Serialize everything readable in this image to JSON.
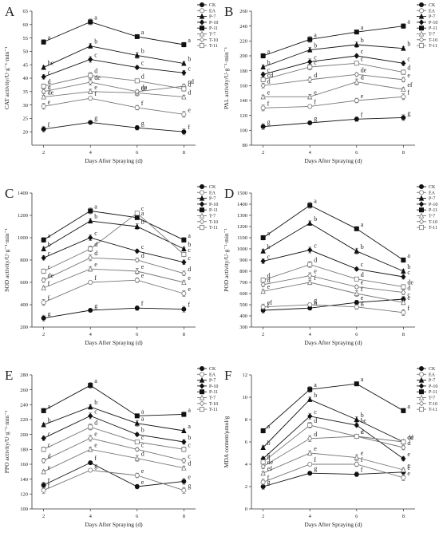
{
  "chart_data": [
    {
      "panel": "A",
      "type": "line",
      "ylabel": "CAT activity/U·g⁻¹·min⁻¹",
      "xlabel": "Days After Spraying (d)",
      "x": [
        2,
        4,
        6,
        8
      ],
      "ylim": [
        15,
        65
      ],
      "yticks": [
        20,
        25,
        30,
        35,
        40,
        45,
        50,
        55,
        60,
        65
      ],
      "series": [
        {
          "name": "CK",
          "values": [
            21,
            23.5,
            21.5,
            20
          ],
          "sig": [
            "f",
            "g",
            "g",
            "f"
          ]
        },
        {
          "name": "EA",
          "values": [
            29.5,
            32.5,
            29,
            26.5
          ],
          "sig": [
            "e",
            "f",
            "f",
            "e"
          ]
        },
        {
          "name": "P-7",
          "values": [
            44,
            52,
            48.5,
            45.5
          ],
          "sig": [
            "bc",
            "b",
            "b",
            "b"
          ]
        },
        {
          "name": "P-10",
          "values": [
            40.5,
            47,
            44,
            42
          ],
          "sig": [
            "c",
            "c",
            "c",
            "c"
          ]
        },
        {
          "name": "P-11",
          "values": [
            53.5,
            61,
            55.5,
            52.5
          ],
          "sig": [
            "a",
            "a",
            "a",
            "a"
          ]
        },
        {
          "name": "T-7",
          "values": [
            33,
            35,
            34.5,
            33
          ],
          "sig": [
            "de",
            "e",
            "de",
            "d"
          ]
        },
        {
          "name": "T-10",
          "values": [
            35,
            38.5,
            35,
            37
          ],
          "sig": [
            "d",
            "de",
            "de",
            "cd"
          ]
        },
        {
          "name": "T-11",
          "values": [
            37,
            41,
            39,
            36
          ],
          "sig": [
            "d",
            "d",
            "d",
            "d"
          ]
        }
      ]
    },
    {
      "panel": "B",
      "type": "line",
      "ylabel": "PAL activity/U·g⁻¹·min⁻¹",
      "xlabel": "Days After Spraying (d)",
      "x": [
        2,
        4,
        6,
        8
      ],
      "ylim": [
        80,
        260
      ],
      "yticks": [
        80,
        100,
        120,
        140,
        160,
        180,
        200,
        220,
        240,
        260
      ],
      "series": [
        {
          "name": "CK",
          "values": [
            105,
            110,
            115,
            117
          ],
          "sig": [
            "g",
            "g",
            "f",
            "g"
          ]
        },
        {
          "name": "EA",
          "values": [
            130,
            132,
            140,
            145
          ],
          "sig": [
            "f",
            "f",
            "e",
            "f"
          ]
        },
        {
          "name": "P-7",
          "values": [
            185,
            208,
            215,
            210
          ],
          "sig": [
            "b",
            "b",
            "b",
            "b"
          ]
        },
        {
          "name": "P-10",
          "values": [
            175,
            192,
            200,
            190
          ],
          "sig": [
            "c",
            "c",
            "c",
            "c"
          ]
        },
        {
          "name": "P-11",
          "values": [
            200,
            222,
            232,
            240
          ],
          "sig": [
            "a",
            "a",
            "a",
            "a"
          ]
        },
        {
          "name": "T-7",
          "values": [
            145,
            145,
            165,
            155
          ],
          "sig": [
            "e",
            "e",
            "d",
            "ef"
          ]
        },
        {
          "name": "T-10",
          "values": [
            160,
            168,
            175,
            168
          ],
          "sig": [
            "d",
            "d",
            "de",
            "e"
          ]
        },
        {
          "name": "T-11",
          "values": [
            168,
            185,
            190,
            178
          ],
          "sig": [
            "cd",
            "c",
            "c",
            "d"
          ]
        }
      ]
    },
    {
      "panel": "C",
      "type": "line",
      "ylabel": "SOD activity/U·g⁻¹·min⁻¹",
      "xlabel": "Days After Spraying (d)",
      "x": [
        2,
        4,
        6,
        8
      ],
      "ylim": [
        200,
        1400
      ],
      "yticks": [
        200,
        400,
        600,
        800,
        1000,
        1200,
        1400
      ],
      "series": [
        {
          "name": "CK",
          "values": [
            280,
            350,
            370,
            360
          ],
          "sig": [
            "g",
            "g",
            "f",
            "f"
          ]
        },
        {
          "name": "EA",
          "values": [
            420,
            600,
            620,
            500
          ],
          "sig": [
            "f",
            "f",
            "e",
            "e"
          ]
        },
        {
          "name": "P-7",
          "values": [
            900,
            1150,
            1100,
            900
          ],
          "sig": [
            "b",
            "b",
            "b",
            "b"
          ]
        },
        {
          "name": "P-10",
          "values": [
            820,
            1000,
            880,
            780
          ],
          "sig": [
            "c",
            "c",
            "c",
            "c"
          ]
        },
        {
          "name": "P-11",
          "values": [
            980,
            1240,
            1180,
            980
          ],
          "sig": [
            "a",
            "a",
            "a",
            "a"
          ]
        },
        {
          "name": "T-7",
          "values": [
            550,
            720,
            700,
            600
          ],
          "sig": [
            "f",
            "e",
            "e",
            "e"
          ]
        },
        {
          "name": "T-10",
          "values": [
            620,
            820,
            800,
            680
          ],
          "sig": [
            "de",
            "d",
            "d",
            "d"
          ]
        },
        {
          "name": "T-11",
          "values": [
            700,
            900,
            1220,
            850
          ],
          "sig": [
            "c",
            "d",
            "c",
            "c"
          ]
        }
      ]
    },
    {
      "panel": "D",
      "type": "line",
      "ylabel": "POD activity/U·g⁻¹·min⁻¹",
      "xlabel": "Days After Spraying (d)",
      "x": [
        2,
        4,
        6,
        8
      ],
      "ylim": [
        300,
        1500
      ],
      "yticks": [
        300,
        400,
        500,
        600,
        700,
        800,
        900,
        1000,
        1100,
        1200,
        1300,
        1400,
        1500
      ],
      "series": [
        {
          "name": "CK",
          "values": [
            450,
            470,
            520,
            550
          ],
          "sig": [
            "f",
            "h",
            "e",
            "c"
          ]
        },
        {
          "name": "EA",
          "values": [
            480,
            500,
            480,
            430
          ],
          "sig": [
            "ef",
            "g",
            "g",
            "f"
          ]
        },
        {
          "name": "P-7",
          "values": [
            980,
            1230,
            980,
            800
          ],
          "sig": [
            "b",
            "b",
            "b",
            "b"
          ]
        },
        {
          "name": "P-10",
          "values": [
            890,
            990,
            820,
            750
          ],
          "sig": [
            "c",
            "c",
            "c",
            "c"
          ]
        },
        {
          "name": "P-11",
          "values": [
            1100,
            1390,
            1180,
            900
          ],
          "sig": [
            "a",
            "a",
            "a",
            "a"
          ]
        },
        {
          "name": "T-7",
          "values": [
            620,
            700,
            600,
            520
          ],
          "sig": [
            "e",
            "f",
            "f",
            "e"
          ]
        },
        {
          "name": "T-10",
          "values": [
            680,
            760,
            660,
            610
          ],
          "sig": [
            "d",
            "e",
            "e",
            "d"
          ]
        },
        {
          "name": "T-11",
          "values": [
            720,
            860,
            730,
            660
          ],
          "sig": [
            "d",
            "d",
            "d",
            "de"
          ]
        }
      ]
    },
    {
      "panel": "E",
      "type": "line",
      "ylabel": "PPO activity/U·g⁻¹·min⁻¹",
      "xlabel": "Days After Spraying (d)",
      "x": [
        2,
        4,
        6,
        8
      ],
      "ylim": [
        100,
        280
      ],
      "yticks": [
        100,
        120,
        140,
        160,
        180,
        200,
        220,
        240,
        260,
        280
      ],
      "series": [
        {
          "name": "CK",
          "values": [
            132,
            162,
            130,
            137
          ],
          "sig": [
            "f",
            "f",
            "e",
            "e"
          ]
        },
        {
          "name": "EA",
          "values": [
            125,
            152,
            145,
            125
          ],
          "sig": [
            "f",
            "g",
            "e",
            "g"
          ]
        },
        {
          "name": "P-7",
          "values": [
            213,
            237,
            215,
            205
          ],
          "sig": [
            "b",
            "b",
            "a",
            "a"
          ]
        },
        {
          "name": "P-10",
          "values": [
            195,
            225,
            200,
            190
          ],
          "sig": [
            "c",
            "c",
            "b",
            "b"
          ]
        },
        {
          "name": "P-11",
          "values": [
            232,
            266,
            225,
            227
          ],
          "sig": [
            "a",
            "a",
            "a",
            "a"
          ]
        },
        {
          "name": "T-7",
          "values": [
            150,
            180,
            168,
            155
          ],
          "sig": [
            "e",
            "e",
            "d",
            "d"
          ]
        },
        {
          "name": "T-10",
          "values": [
            165,
            195,
            180,
            165
          ],
          "sig": [
            "d",
            "e",
            "c",
            "c"
          ]
        },
        {
          "name": "T-11",
          "values": [
            180,
            210,
            190,
            180
          ],
          "sig": [
            "c",
            "d",
            "c",
            "c"
          ]
        }
      ]
    },
    {
      "panel": "F",
      "type": "line",
      "ylabel": "MDA content/μmol/g",
      "xlabel": "Days After Spraying (d)",
      "x": [
        2,
        4,
        6,
        8
      ],
      "ylim": [
        0,
        12
      ],
      "yticks": [
        0,
        2,
        4,
        6,
        8,
        10,
        12
      ],
      "series": [
        {
          "name": "CK",
          "values": [
            2.0,
            3.2,
            3.1,
            3.3
          ],
          "sig": [
            "g",
            "g",
            "f",
            "e"
          ]
        },
        {
          "name": "EA",
          "values": [
            2.4,
            4.0,
            4.0,
            2.8
          ],
          "sig": [
            "f",
            "f",
            "f",
            "e"
          ]
        },
        {
          "name": "P-7",
          "values": [
            5.5,
            9.8,
            8.0,
            6.0
          ],
          "sig": [
            "b",
            "b",
            "b",
            "cd"
          ]
        },
        {
          "name": "P-10",
          "values": [
            4.5,
            8.3,
            7.5,
            4.5
          ],
          "sig": [
            "c",
            "c",
            "bc",
            "e"
          ]
        },
        {
          "name": "P-11",
          "values": [
            7.0,
            10.7,
            11.2,
            8.8
          ],
          "sig": [
            "a",
            "a",
            "a",
            "a"
          ]
        },
        {
          "name": "T-7",
          "values": [
            3.2,
            5.0,
            4.6,
            3.5
          ],
          "sig": [
            "ef",
            "e",
            "e",
            "e"
          ]
        },
        {
          "name": "T-10",
          "values": [
            3.8,
            6.3,
            6.5,
            5.5
          ],
          "sig": [
            "de",
            "d",
            "c",
            "d"
          ]
        },
        {
          "name": "T-11",
          "values": [
            4.2,
            7.5,
            6.5,
            6.0
          ],
          "sig": [
            "d",
            "d",
            "d",
            "de"
          ]
        }
      ]
    }
  ],
  "styles": {
    "CK": {
      "marker": "circle",
      "fill": "#111111",
      "line": "#111111"
    },
    "EA": {
      "marker": "circle",
      "fill": "#ffffff",
      "line": "#777777"
    },
    "P-7": {
      "marker": "triangle",
      "fill": "#111111",
      "line": "#111111"
    },
    "P-10": {
      "marker": "diamond",
      "fill": "#111111",
      "line": "#111111"
    },
    "P-11": {
      "marker": "square",
      "fill": "#111111",
      "line": "#111111"
    },
    "T-7": {
      "marker": "triangle",
      "fill": "#ffffff",
      "line": "#777777"
    },
    "T-10": {
      "marker": "diamond",
      "fill": "#ffffff",
      "line": "#777777"
    },
    "T-11": {
      "marker": "square",
      "fill": "#ffffff",
      "line": "#777777"
    }
  }
}
